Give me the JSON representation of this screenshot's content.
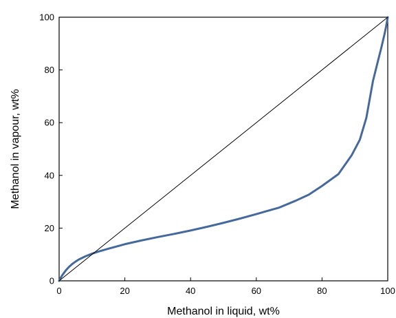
{
  "chart_data": {
    "type": "line",
    "title": "",
    "xlabel": "Methanol in liquid, wt%",
    "ylabel": "Methanol in vapour, wt%",
    "xlim": [
      0,
      100
    ],
    "ylim": [
      0,
      100
    ],
    "x_ticks": [
      0,
      20,
      40,
      60,
      80,
      100
    ],
    "y_ticks": [
      0,
      20,
      40,
      60,
      80,
      100
    ],
    "grid": false,
    "legend": "none",
    "series": [
      {
        "color": "#44699a",
        "x": [
          0,
          0.5,
          1,
          2,
          3,
          4,
          5,
          6,
          8,
          10,
          12,
          15,
          20,
          25,
          30,
          35,
          40,
          45,
          50,
          55,
          60,
          63,
          67,
          72,
          76,
          80,
          85,
          89,
          91.5,
          93.5,
          95.5,
          97,
          98,
          99,
          99.5,
          100
        ],
        "y": [
          0,
          1.2,
          2.2,
          3.9,
          5.3,
          6.4,
          7.3,
          8.1,
          9.3,
          10.3,
          11.1,
          12.2,
          13.9,
          15.3,
          16.6,
          17.8,
          19.1,
          20.5,
          22.0,
          23.6,
          25.3,
          26.4,
          27.8,
          30.4,
          32.7,
          36.0,
          40.5,
          47.6,
          53.5,
          61.9,
          75.8,
          83.3,
          88.2,
          93.5,
          96.5,
          100
        ]
      },
      {
        "color": "#000000",
        "x": [
          0,
          100
        ],
        "y": [
          0,
          100
        ]
      }
    ]
  }
}
